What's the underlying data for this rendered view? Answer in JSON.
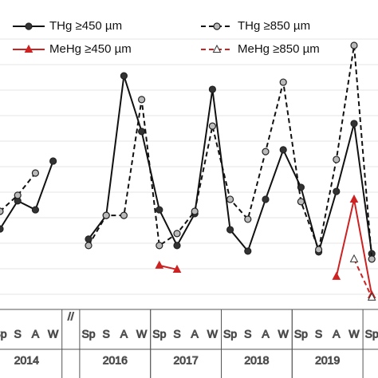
{
  "chart_data": {
    "type": "line",
    "categories": [
      "Sp",
      "S",
      "A",
      "W",
      null,
      "Sp",
      "S",
      "A",
      "W",
      "Sp",
      "S",
      "A",
      "W",
      "Sp",
      "S",
      "A",
      "W",
      "Sp",
      "S",
      "A",
      "W",
      "Sp"
    ],
    "x_groups": [
      "2014",
      "2016",
      "2017",
      "2018",
      "2019"
    ],
    "axis_break": "//",
    "ylim": [
      0,
      12
    ],
    "series": [
      {
        "name": "THg ≥450 µm",
        "color": "#111111",
        "dash": false,
        "marker": "circle",
        "marker_fill": "#333333",
        "values": [
          3.06,
          4.16,
          3.81,
          5.72,
          null,
          2.66,
          3.59,
          9.06,
          6.88,
          3.81,
          2.41,
          3.66,
          8.53,
          3.03,
          2.19,
          4.22,
          6.16,
          4.69,
          2.16,
          4.53,
          7.19,
          2.09
        ]
      },
      {
        "name": "THg ≥850 µm",
        "color": "#111111",
        "dash": true,
        "marker": "circle",
        "marker_fill": "#bbbbbb",
        "values": [
          3.75,
          4.38,
          5.25,
          null,
          null,
          2.41,
          3.59,
          3.59,
          8.13,
          2.41,
          2.88,
          3.75,
          7.09,
          4.22,
          3.44,
          6.09,
          8.81,
          4.13,
          2.25,
          5.78,
          10.25,
          1.88
        ]
      },
      {
        "name": "MeHg ≥450 µm",
        "color": "#cc2222",
        "dash": false,
        "marker": "triangle",
        "marker_fill": "#cc2222",
        "values": [
          null,
          null,
          null,
          null,
          null,
          null,
          null,
          null,
          null,
          1.63,
          1.47,
          null,
          null,
          null,
          null,
          null,
          null,
          null,
          null,
          1.19,
          4.22,
          0.47
        ]
      },
      {
        "name": "MeHg ≥850 µm",
        "color": "#cc2222",
        "dash": true,
        "marker": "triangle",
        "marker_fill": "#ffffff",
        "values": [
          null,
          null,
          null,
          null,
          null,
          null,
          null,
          null,
          null,
          null,
          null,
          null,
          null,
          null,
          null,
          null,
          null,
          null,
          null,
          null,
          1.88,
          0.38
        ]
      }
    ]
  }
}
